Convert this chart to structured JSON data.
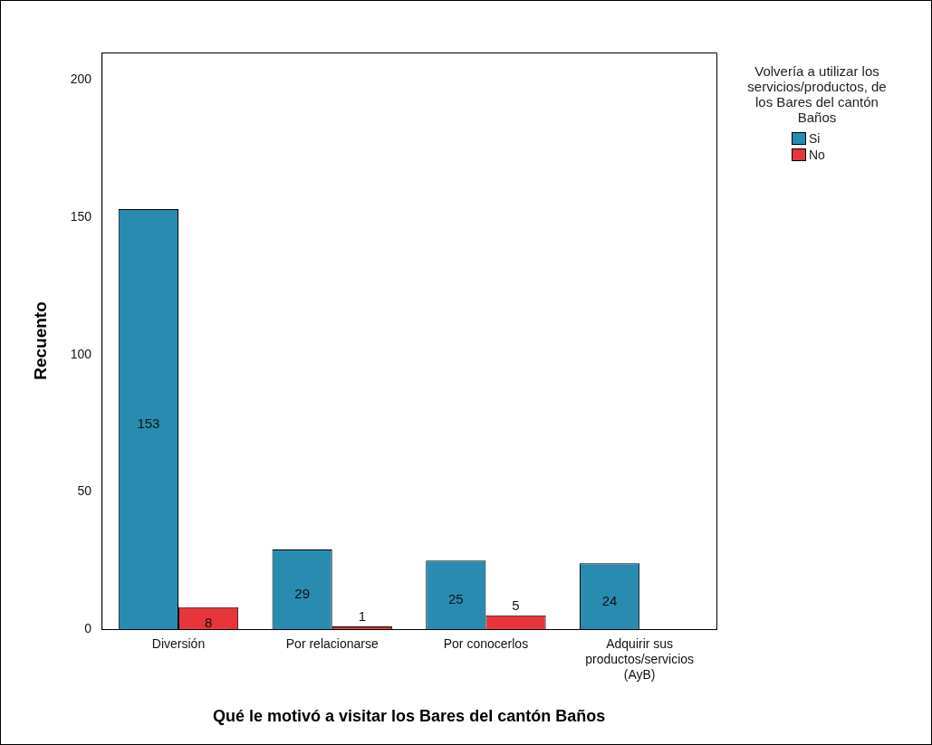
{
  "chart_data": {
    "type": "bar",
    "xlabel": "Qué le motivó a visitar los Bares del cantón Baños",
    "ylabel": "Recuento",
    "legend_title": "Volvería a utilizar los servicios/productos, de los Bares del cantón Baños",
    "categories": [
      "Diversión",
      "Por relacionarse",
      "Por conocerlos",
      "Adquirir sus productos/servicios (AyB)"
    ],
    "series": [
      {
        "name": "Si",
        "color": "#2a8bb0",
        "values": [
          153,
          29,
          25,
          24
        ]
      },
      {
        "name": "No",
        "color": "#e8353b",
        "values": [
          8,
          1,
          5,
          null
        ]
      }
    ],
    "ylim": [
      0,
      210
    ],
    "yticks": [
      0,
      50,
      100,
      150,
      200
    ],
    "grid": false,
    "legend": "right",
    "data_labels": true
  }
}
